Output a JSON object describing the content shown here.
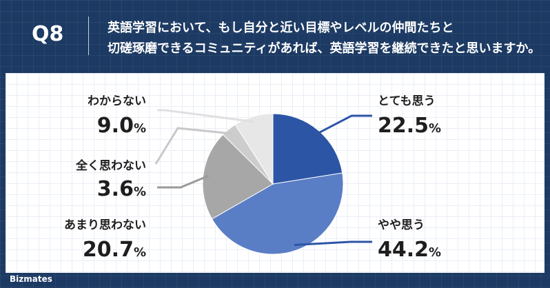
{
  "header": {
    "question_number": "Q8",
    "question_line1": "英語学習において、もし自分と近い目標やレベルの仲間たちと",
    "question_line2": "切磋琢磨できるコミュニティがあれば、英語学習を継続できたと思いますか。"
  },
  "brand": {
    "logo_text": "Bizmates"
  },
  "colors": {
    "background": "#1c3a63",
    "slices": [
      "#2c55a6",
      "#5a7ec5",
      "#a7a7a7",
      "#cdcdcd",
      "#e7e7e7"
    ]
  },
  "chart_data": {
    "type": "pie",
    "categories": [
      "とても思う",
      "やや思う",
      "あまり思わない",
      "全く思わない",
      "わからない"
    ],
    "values": [
      22.5,
      44.2,
      20.7,
      3.6,
      9.0
    ],
    "value_labels": [
      "22.5%",
      "44.2%",
      "20.7%",
      "3.6%",
      "9.0%"
    ],
    "start": "12 o'clock",
    "direction": "clockwise"
  }
}
